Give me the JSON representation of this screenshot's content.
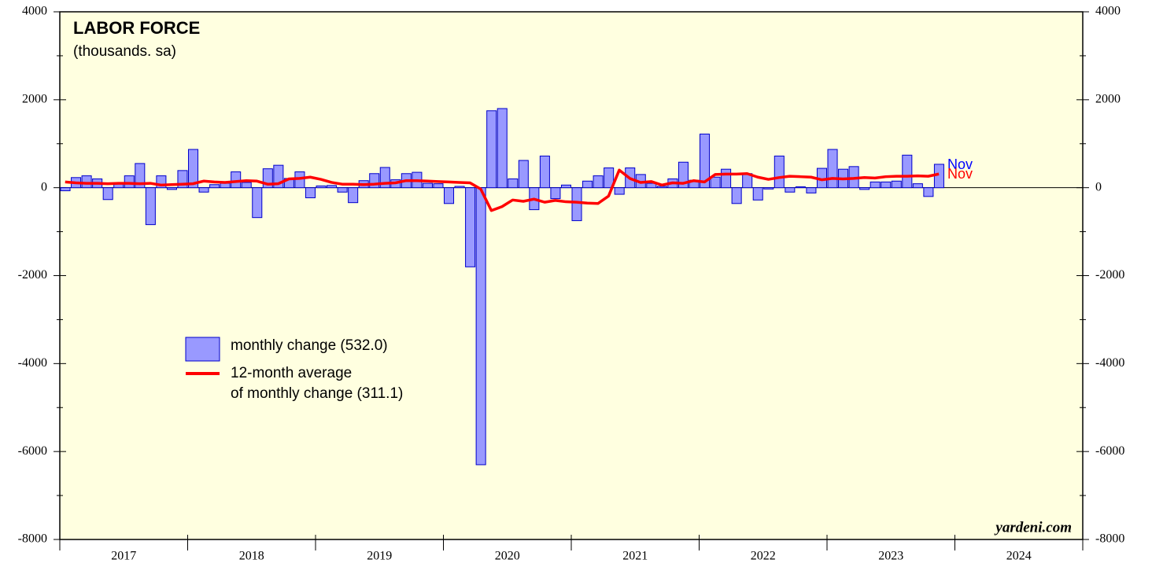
{
  "chart_data": {
    "type": "bar",
    "title": "LABOR FORCE",
    "subtitle": "(thousands. sa)",
    "source": "yardeni.com",
    "year_labels": [
      "2017",
      "2018",
      "2019",
      "2020",
      "2021",
      "2022",
      "2023",
      "2024"
    ],
    "categories": [
      null,
      null,
      null,
      null,
      null,
      null,
      null,
      null,
      null,
      null,
      null,
      null,
      null,
      null,
      null,
      null,
      null,
      null,
      null,
      null,
      null,
      null,
      null,
      null,
      null,
      null,
      null,
      null,
      null,
      null,
      null,
      null,
      null,
      null,
      null,
      null,
      null,
      null,
      null,
      null,
      null,
      null,
      null,
      null,
      null,
      null,
      null,
      null,
      null,
      null,
      null,
      null,
      null,
      null,
      null,
      null,
      null,
      null,
      null,
      null,
      null,
      null,
      null,
      null,
      null,
      null,
      null,
      null,
      null,
      null,
      null,
      null,
      null,
      null,
      null,
      null,
      null,
      null,
      null,
      null,
      null,
      null,
      null
    ],
    "series": [
      {
        "name": "monthly change (532.0)",
        "type": "bar",
        "color": "#9999ff",
        "edge": "#0000cc",
        "values": [
          -70,
          230,
          270,
          200,
          -270,
          90,
          270,
          550,
          -840,
          270,
          -40,
          390,
          870,
          -100,
          70,
          100,
          360,
          120,
          -680,
          430,
          510,
          210,
          360,
          -230,
          40,
          50,
          -100,
          -340,
          160,
          320,
          460,
          180,
          320,
          350,
          100,
          90,
          -360,
          30,
          -1800,
          -6300,
          1750,
          1800,
          200,
          620,
          -500,
          720,
          -250,
          60,
          -750,
          150,
          270,
          450,
          -150,
          450,
          300,
          100,
          30,
          200,
          580,
          170,
          1220,
          240,
          420,
          -360,
          320,
          -280,
          -30,
          720,
          -100,
          20,
          -120,
          440,
          870,
          420,
          480,
          -40,
          130,
          130,
          150,
          740,
          90,
          -200,
          532
        ]
      },
      {
        "name": "12-month average\nof monthly change (311.1)",
        "type": "line",
        "color": "#ff0000",
        "values": [
          130,
          110,
          100,
          100,
          90,
          100,
          100,
          90,
          100,
          60,
          70,
          80,
          90,
          150,
          130,
          120,
          140,
          160,
          150,
          80,
          90,
          200,
          210,
          240,
          190,
          120,
          80,
          80,
          70,
          80,
          100,
          110,
          160,
          160,
          150,
          140,
          130,
          120,
          110,
          -30,
          -520,
          -430,
          -280,
          -310,
          -260,
          -330,
          -290,
          -320,
          -330,
          -350,
          -360,
          -190,
          400,
          210,
          120,
          140,
          60,
          110,
          100,
          160,
          130,
          300,
          310,
          310,
          320,
          240,
          190,
          230,
          260,
          250,
          240,
          180,
          210,
          200,
          210,
          230,
          220,
          250,
          260,
          260,
          270,
          260,
          311.1
        ]
      }
    ],
    "annotations": [
      {
        "text": "Nov",
        "color": "#0000ff"
      },
      {
        "text": "Nov",
        "color": "#ff0000"
      }
    ],
    "ylim": [
      -8000,
      4000
    ],
    "yticks": [
      -8000,
      -6000,
      -4000,
      -2000,
      0,
      2000,
      4000
    ],
    "plot_background": "#ffffe0"
  }
}
